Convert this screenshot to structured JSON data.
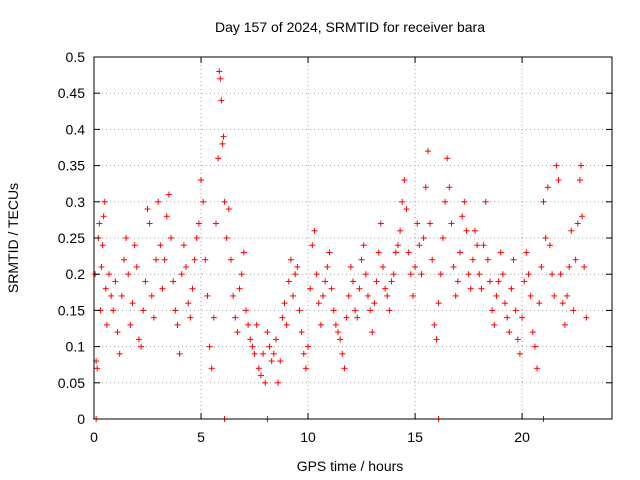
{
  "chart_data": {
    "type": "scatter",
    "title": "Day 157 of 2024, SRMTID for receiver bara",
    "xlabel": "GPS time / hours",
    "ylabel": "SRMTID / TECUs",
    "xlim": [
      0,
      24.2
    ],
    "ylim": [
      0,
      0.5
    ],
    "x_ticks": [
      0,
      5,
      10,
      15,
      20
    ],
    "x_tick_labels": [
      "0",
      "5",
      "10",
      "15",
      "20"
    ],
    "y_ticks": [
      0,
      0.05,
      0.1,
      0.15,
      0.2,
      0.25,
      0.3,
      0.35,
      0.4,
      0.45,
      0.5
    ],
    "y_tick_labels": [
      "0",
      "0.05",
      "0.1",
      "0.15",
      "0.2",
      "0.25",
      "0.3",
      "0.35",
      "0.4",
      "0.45",
      "0.5"
    ],
    "grid": true,
    "marker": "plus",
    "color": "#ff0000",
    "series": [
      {
        "name": "SRMTID",
        "points": [
          [
            0.05,
            0.2
          ],
          [
            0.1,
            0.08
          ],
          [
            0.15,
            0.07
          ],
          [
            0.2,
            0.25
          ],
          [
            0.25,
            0.27
          ],
          [
            0.3,
            0.15
          ],
          [
            0.35,
            0.21
          ],
          [
            0.4,
            0.24
          ],
          [
            0.45,
            0.28
          ],
          [
            0.5,
            0.3
          ],
          [
            0.55,
            0.18
          ],
          [
            0.6,
            0.13
          ],
          [
            0.7,
            0.2
          ],
          [
            0.8,
            0.17
          ],
          [
            0.9,
            0.15
          ],
          [
            1.0,
            0.19
          ],
          [
            1.1,
            0.12
          ],
          [
            1.2,
            0.09
          ],
          [
            1.3,
            0.17
          ],
          [
            1.4,
            0.22
          ],
          [
            1.5,
            0.25
          ],
          [
            1.6,
            0.2
          ],
          [
            1.7,
            0.13
          ],
          [
            1.8,
            0.16
          ],
          [
            1.9,
            0.24
          ],
          [
            2.0,
            0.21
          ],
          [
            2.1,
            0.11
          ],
          [
            2.2,
            0.1
          ],
          [
            2.3,
            0.15
          ],
          [
            2.4,
            0.19
          ],
          [
            2.5,
            0.29
          ],
          [
            2.6,
            0.27
          ],
          [
            2.7,
            0.17
          ],
          [
            2.8,
            0.14
          ],
          [
            2.9,
            0.22
          ],
          [
            3.0,
            0.3
          ],
          [
            3.1,
            0.24
          ],
          [
            3.2,
            0.18
          ],
          [
            3.3,
            0.22
          ],
          [
            3.4,
            0.28
          ],
          [
            3.5,
            0.31
          ],
          [
            3.6,
            0.25
          ],
          [
            3.7,
            0.19
          ],
          [
            3.8,
            0.15
          ],
          [
            3.9,
            0.13
          ],
          [
            4.0,
            0.09
          ],
          [
            4.1,
            0.2
          ],
          [
            4.2,
            0.24
          ],
          [
            4.3,
            0.21
          ],
          [
            4.4,
            0.16
          ],
          [
            4.5,
            0.14
          ],
          [
            4.6,
            0.18
          ],
          [
            4.7,
            0.22
          ],
          [
            4.8,
            0.25
          ],
          [
            4.9,
            0.27
          ],
          [
            5.0,
            0.33
          ],
          [
            5.1,
            0.3
          ],
          [
            5.2,
            0.22
          ],
          [
            5.3,
            0.17
          ],
          [
            5.4,
            0.1
          ],
          [
            5.5,
            0.07
          ],
          [
            5.6,
            0.14
          ],
          [
            5.7,
            0.27
          ],
          [
            5.8,
            0.36
          ],
          [
            5.85,
            0.48
          ],
          [
            5.9,
            0.47
          ],
          [
            5.95,
            0.44
          ],
          [
            6.0,
            0.38
          ],
          [
            6.05,
            0.39
          ],
          [
            6.1,
            0.3
          ],
          [
            6.2,
            0.25
          ],
          [
            6.3,
            0.29
          ],
          [
            6.4,
            0.22
          ],
          [
            6.5,
            0.17
          ],
          [
            6.6,
            0.14
          ],
          [
            6.7,
            0.12
          ],
          [
            6.8,
            0.18
          ],
          [
            6.9,
            0.2
          ],
          [
            7.0,
            0.23
          ],
          [
            7.1,
            0.15
          ],
          [
            7.2,
            0.13
          ],
          [
            7.3,
            0.11
          ],
          [
            7.4,
            0.1
          ],
          [
            7.5,
            0.09
          ],
          [
            7.6,
            0.13
          ],
          [
            7.7,
            0.07
          ],
          [
            7.8,
            0.06
          ],
          [
            7.9,
            0.09
          ],
          [
            8.0,
            0.05
          ],
          [
            8.1,
            0.12
          ],
          [
            8.2,
            0.1
          ],
          [
            8.3,
            0.08
          ],
          [
            8.4,
            0.09
          ],
          [
            8.5,
            0.11
          ],
          [
            8.6,
            0.05
          ],
          [
            8.7,
            0.08
          ],
          [
            8.8,
            0.14
          ],
          [
            8.9,
            0.16
          ],
          [
            9.0,
            0.13
          ],
          [
            9.1,
            0.19
          ],
          [
            9.2,
            0.22
          ],
          [
            9.3,
            0.17
          ],
          [
            9.4,
            0.2
          ],
          [
            9.5,
            0.21
          ],
          [
            9.6,
            0.15
          ],
          [
            9.7,
            0.12
          ],
          [
            9.8,
            0.09
          ],
          [
            9.9,
            0.07
          ],
          [
            10.0,
            0.1
          ],
          [
            10.1,
            0.18
          ],
          [
            10.2,
            0.24
          ],
          [
            10.3,
            0.26
          ],
          [
            10.4,
            0.2
          ],
          [
            10.5,
            0.16
          ],
          [
            10.6,
            0.13
          ],
          [
            10.7,
            0.17
          ],
          [
            10.8,
            0.19
          ],
          [
            10.9,
            0.21
          ],
          [
            11.0,
            0.23
          ],
          [
            11.1,
            0.18
          ],
          [
            11.2,
            0.15
          ],
          [
            11.3,
            0.13
          ],
          [
            11.4,
            0.12
          ],
          [
            11.5,
            0.11
          ],
          [
            11.6,
            0.09
          ],
          [
            11.7,
            0.07
          ],
          [
            11.8,
            0.14
          ],
          [
            11.9,
            0.17
          ],
          [
            12.0,
            0.21
          ],
          [
            12.1,
            0.19
          ],
          [
            12.2,
            0.15
          ],
          [
            12.3,
            0.14
          ],
          [
            12.4,
            0.18
          ],
          [
            12.5,
            0.22
          ],
          [
            12.6,
            0.24
          ],
          [
            12.7,
            0.2
          ],
          [
            12.8,
            0.17
          ],
          [
            12.9,
            0.15
          ],
          [
            13.0,
            0.12
          ],
          [
            13.1,
            0.16
          ],
          [
            13.2,
            0.19
          ],
          [
            13.3,
            0.23
          ],
          [
            13.4,
            0.27
          ],
          [
            13.5,
            0.21
          ],
          [
            13.6,
            0.18
          ],
          [
            13.7,
            0.17
          ],
          [
            13.8,
            0.15
          ],
          [
            13.9,
            0.19
          ],
          [
            14.0,
            0.2
          ],
          [
            14.1,
            0.23
          ],
          [
            14.2,
            0.24
          ],
          [
            14.3,
            0.26
          ],
          [
            14.4,
            0.3
          ],
          [
            14.5,
            0.33
          ],
          [
            14.6,
            0.29
          ],
          [
            14.7,
            0.23
          ],
          [
            14.8,
            0.2
          ],
          [
            14.9,
            0.17
          ],
          [
            15.0,
            0.21
          ],
          [
            15.1,
            0.27
          ],
          [
            15.2,
            0.24
          ],
          [
            15.3,
            0.2
          ],
          [
            15.4,
            0.25
          ],
          [
            15.5,
            0.32
          ],
          [
            15.6,
            0.37
          ],
          [
            15.7,
            0.27
          ],
          [
            15.8,
            0.22
          ],
          [
            15.9,
            0.13
          ],
          [
            16.0,
            0.11
          ],
          [
            16.1,
            0.16
          ],
          [
            16.2,
            0.2
          ],
          [
            16.3,
            0.25
          ],
          [
            16.4,
            0.3
          ],
          [
            16.5,
            0.36
          ],
          [
            16.6,
            0.32
          ],
          [
            16.7,
            0.27
          ],
          [
            16.8,
            0.21
          ],
          [
            16.9,
            0.17
          ],
          [
            17.0,
            0.19
          ],
          [
            17.1,
            0.23
          ],
          [
            17.2,
            0.28
          ],
          [
            17.3,
            0.3
          ],
          [
            17.4,
            0.26
          ],
          [
            17.5,
            0.2
          ],
          [
            17.6,
            0.18
          ],
          [
            17.7,
            0.22
          ],
          [
            17.8,
            0.26
          ],
          [
            17.9,
            0.24
          ],
          [
            18.0,
            0.2
          ],
          [
            18.1,
            0.18
          ],
          [
            18.2,
            0.24
          ],
          [
            18.3,
            0.3
          ],
          [
            18.4,
            0.22
          ],
          [
            18.5,
            0.19
          ],
          [
            18.6,
            0.15
          ],
          [
            18.7,
            0.13
          ],
          [
            18.8,
            0.17
          ],
          [
            18.9,
            0.19
          ],
          [
            19.0,
            0.23
          ],
          [
            19.1,
            0.2
          ],
          [
            19.2,
            0.16
          ],
          [
            19.3,
            0.14
          ],
          [
            19.4,
            0.12
          ],
          [
            19.5,
            0.18
          ],
          [
            19.6,
            0.22
          ],
          [
            19.7,
            0.15
          ],
          [
            19.8,
            0.11
          ],
          [
            19.9,
            0.09
          ],
          [
            20.0,
            0.14
          ],
          [
            20.1,
            0.19
          ],
          [
            20.2,
            0.23
          ],
          [
            20.3,
            0.2
          ],
          [
            20.4,
            0.17
          ],
          [
            20.5,
            0.12
          ],
          [
            20.6,
            0.1
          ],
          [
            20.7,
            0.07
          ],
          [
            20.8,
            0.16
          ],
          [
            20.9,
            0.21
          ],
          [
            21.0,
            0.3
          ],
          [
            21.1,
            0.25
          ],
          [
            21.2,
            0.32
          ],
          [
            21.3,
            0.24
          ],
          [
            21.4,
            0.2
          ],
          [
            21.5,
            0.17
          ],
          [
            21.6,
            0.35
          ],
          [
            21.7,
            0.33
          ],
          [
            21.8,
            0.2
          ],
          [
            21.9,
            0.16
          ],
          [
            22.0,
            0.13
          ],
          [
            22.1,
            0.17
          ],
          [
            22.2,
            0.21
          ],
          [
            22.3,
            0.26
          ],
          [
            22.4,
            0.15
          ],
          [
            22.5,
            0.22
          ],
          [
            22.6,
            0.27
          ],
          [
            22.7,
            0.33
          ],
          [
            22.75,
            0.35
          ],
          [
            22.8,
            0.28
          ],
          [
            22.9,
            0.21
          ],
          [
            23.0,
            0.14
          ],
          [
            0.1,
            0.0
          ],
          [
            6.1,
            0.0
          ],
          [
            8.1,
            0.0
          ],
          [
            16.1,
            0.0
          ],
          [
            21.0,
            0.0
          ]
        ]
      }
    ]
  }
}
